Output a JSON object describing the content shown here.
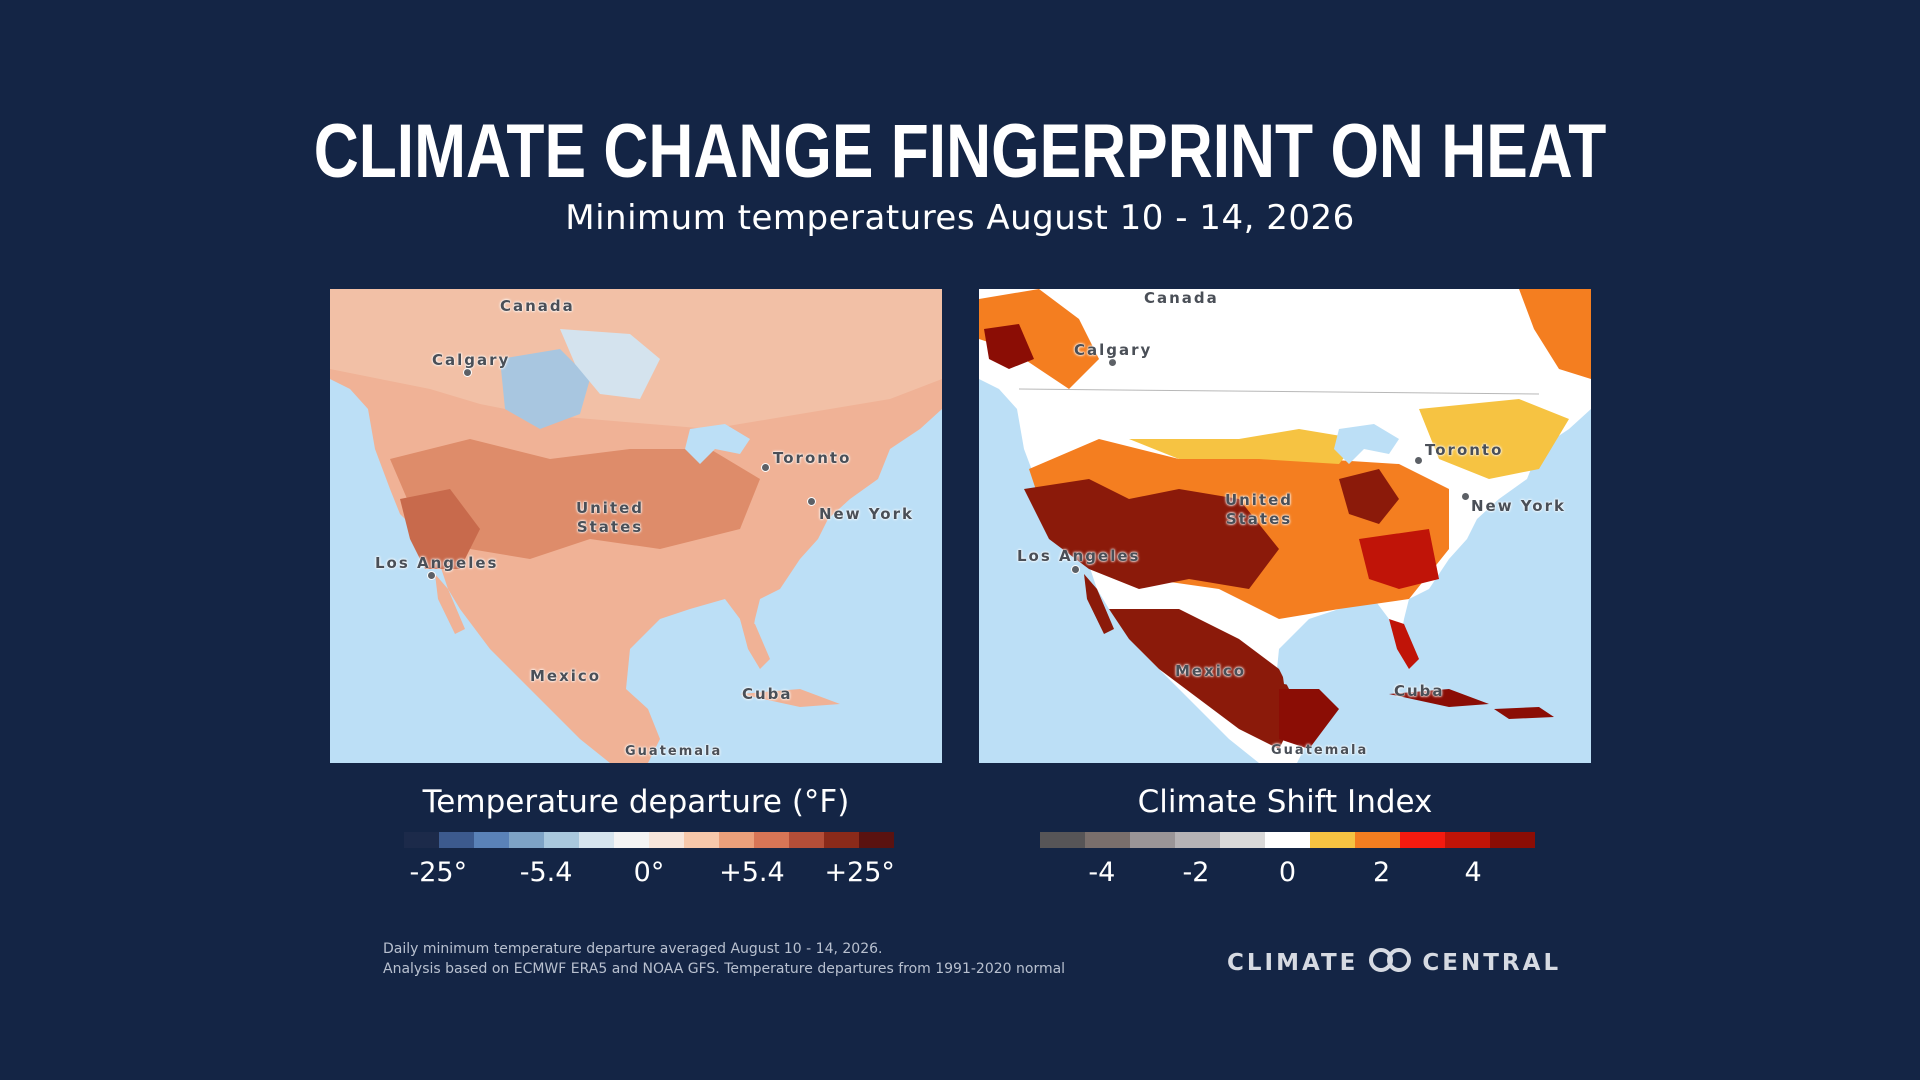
{
  "header": {
    "title": "Climate Change Fingerprint on Heat",
    "subtitle": "Minimum temperatures August 10 - 14, 2026"
  },
  "maps": {
    "left": {
      "labels": {
        "canada": "Canada",
        "calgary": "Calgary",
        "toronto": "Toronto",
        "new_york": "New York",
        "united_states": "United States",
        "los_angeles": "Los Angeles",
        "mexico": "Mexico",
        "cuba": "Cuba",
        "guatemala": "Guatemala"
      }
    },
    "right": {
      "labels": {
        "canada": "Canada",
        "calgary": "Calgary",
        "toronto": "Toronto",
        "new_york": "New York",
        "united_states": "United States",
        "los_angeles": "Los Angeles",
        "mexico": "Mexico",
        "cuba": "Cuba",
        "guatemala": "Guatemala"
      }
    }
  },
  "legends": {
    "temperature": {
      "title": "Temperature departure (°F)",
      "ticks": [
        "-25°",
        "-5.4",
        "0°",
        "+5.4",
        "+25°"
      ],
      "colors": [
        "#1c2a4a",
        "#3c5a8e",
        "#5a82b8",
        "#7ea3c6",
        "#a9c8de",
        "#d6e4ee",
        "#f4f4f4",
        "#f6e6dc",
        "#f6c8ab",
        "#eba07b",
        "#d77556",
        "#b54e38",
        "#8a2a1a",
        "#5a1210"
      ]
    },
    "csi": {
      "title": "Climate Shift Index",
      "ticks": [
        "-4",
        "-2",
        "0",
        "2",
        "4"
      ],
      "colors": [
        "#575557",
        "#7a6f6c",
        "#9a9597",
        "#b6b3b5",
        "#d9d9d9",
        "#ffffff",
        "#f6c342",
        "#f47e20",
        "#f51a0f",
        "#c01408",
        "#8b0d05"
      ]
    }
  },
  "footnote": {
    "line1": "Daily minimum temperature departure averaged August 10 - 14, 2026.",
    "line2": "Analysis based on ECMWF ERA5 and NOAA GFS. Temperature departures from 1991-2020 normal"
  },
  "logo": {
    "left": "CLIMATE",
    "right": "CENTRAL"
  }
}
